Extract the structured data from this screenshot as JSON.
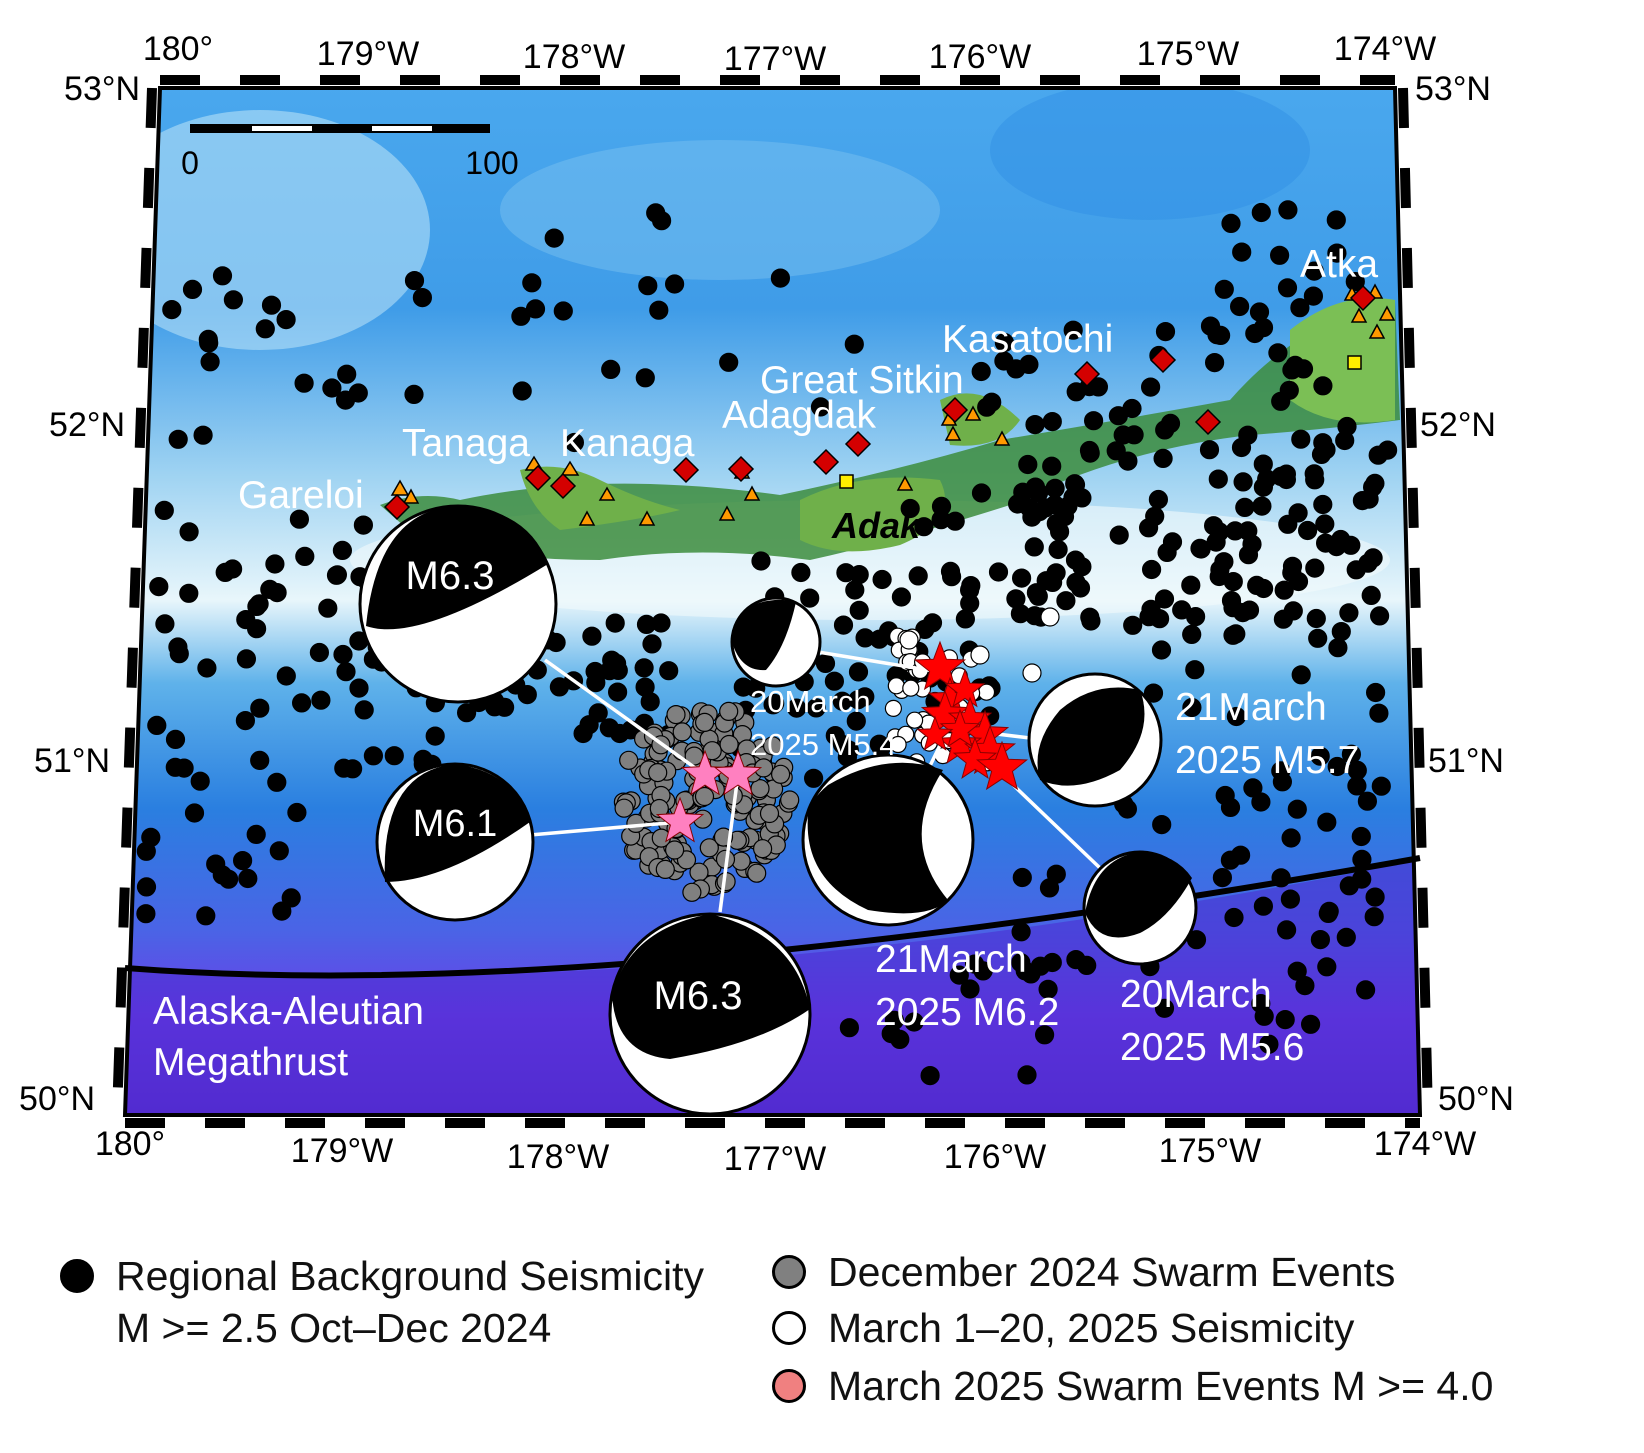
{
  "map": {
    "scale_bar": {
      "labels": [
        "0",
        "100"
      ]
    },
    "top_axis": [
      "180°",
      "179°W",
      "178°W",
      "177°W",
      "176°W",
      "175°W",
      "174°W"
    ],
    "bottom_axis": [
      "180°",
      "179°W",
      "178°W",
      "177°W",
      "176°W",
      "175°W",
      "174°W"
    ],
    "left_axis": [
      "53°N",
      "52°N",
      "51°N",
      "50°N"
    ],
    "right_axis": [
      "53°N",
      "52°N",
      "51°N",
      "50°N"
    ],
    "volcanoes": [
      "Atka",
      "Kasatochi",
      "Great Sitkin",
      "Adagdak",
      "Tanaga",
      "Kanaga",
      "Gareloi"
    ],
    "island_label": "Adak",
    "trench_label": [
      "Alaska-Aleutian",
      "Megathrust"
    ],
    "mechanisms": [
      {
        "label": "M6.3"
      },
      {
        "label": "M6.1"
      },
      {
        "label": "M6.3"
      },
      {
        "label_lines": [
          "20March",
          "2025 M5.4"
        ]
      },
      {
        "label_lines": [
          "21March",
          "2025 M6.2"
        ]
      },
      {
        "label_lines": [
          "21March",
          "2025 M5.7"
        ]
      },
      {
        "label_lines": [
          "20March",
          "2025 M5.6"
        ]
      }
    ]
  },
  "legend": {
    "items": [
      {
        "lines": [
          "Regional Background Seismicity",
          "M >= 2.5 Oct–Dec 2024"
        ],
        "color": "#000000"
      },
      {
        "lines": [
          "December 2024 Swarm Events"
        ],
        "color": "#808080"
      },
      {
        "lines": [
          "March 1–20, 2025 Seismicity"
        ],
        "color": "#ffffff"
      },
      {
        "lines": [
          "March 2025 Swarm Events M >= 4.0"
        ],
        "color": "#f08080"
      }
    ]
  },
  "colors": {
    "background_seismicity": "#000000",
    "december_swarm": "#808080",
    "march_seismicity": "#ffffff",
    "march_swarm_star": "#ff0000",
    "large_event_star": "#ff80c0",
    "volcano_diamond": "#d40000",
    "volcano_triangle": "#ff9900",
    "station_square": "#ffee00",
    "land": "#3c8c3c"
  }
}
